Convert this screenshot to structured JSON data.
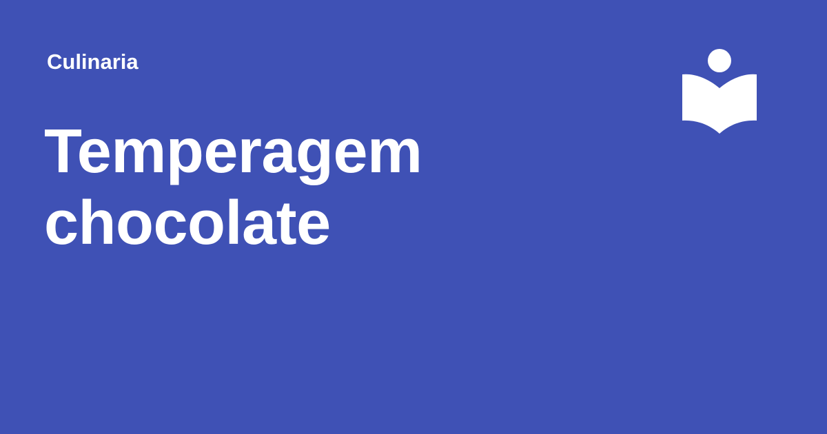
{
  "card": {
    "category": "Culinaria",
    "title_lines": [
      "Temperagem",
      "chocolate"
    ],
    "logo_icon": "reader-book-icon",
    "background_color": "#3f51b5",
    "text_color": "#ffffff"
  }
}
